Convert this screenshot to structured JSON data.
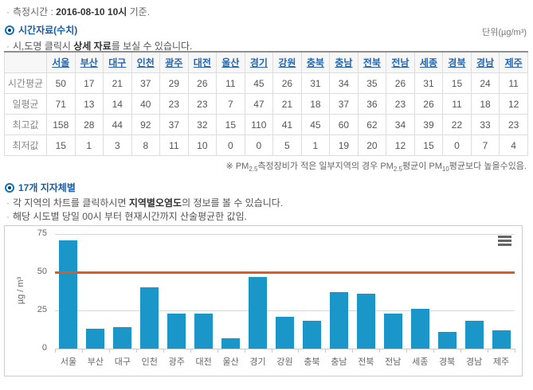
{
  "meta": {
    "bullet": "·",
    "time_prefix": "측정시간 : ",
    "time_value": "2016-08-10 10시",
    "time_suffix": " 기준."
  },
  "section1": {
    "title": "시간자료(수치)",
    "unit": "단위(µg/m³)",
    "hint_pre": "시,도명 클릭시 ",
    "hint_bold": "상세 자료",
    "hint_post": "를 보실 수 있습니다."
  },
  "table": {
    "regions": [
      "서울",
      "부산",
      "대구",
      "인천",
      "광주",
      "대전",
      "울산",
      "경기",
      "강원",
      "충북",
      "충남",
      "전북",
      "전남",
      "세종",
      "경북",
      "경남",
      "제주"
    ],
    "rows": [
      {
        "label": "시간평균",
        "values": [
          50,
          17,
          21,
          37,
          29,
          26,
          11,
          45,
          26,
          31,
          34,
          35,
          26,
          31,
          15,
          24,
          11
        ]
      },
      {
        "label": "일평균",
        "values": [
          71,
          13,
          14,
          40,
          23,
          23,
          7,
          47,
          21,
          18,
          37,
          36,
          23,
          26,
          11,
          18,
          12
        ]
      },
      {
        "label": "최고값",
        "values": [
          158,
          28,
          44,
          92,
          37,
          32,
          15,
          110,
          41,
          45,
          60,
          62,
          34,
          39,
          22,
          33,
          23
        ]
      },
      {
        "label": "최저값",
        "values": [
          15,
          1,
          3,
          8,
          11,
          10,
          0,
          0,
          5,
          1,
          19,
          20,
          12,
          15,
          0,
          7,
          4
        ]
      }
    ]
  },
  "note": {
    "p1": "※ PM",
    "s1": "2.5",
    "p2": "측정장비가 적은 일부지역의 경우 PM",
    "s2": "2.5",
    "p3": "평균이 PM",
    "s3": "10",
    "p4": "평균보다 높을수있음."
  },
  "section2": {
    "title": "17개 지자체별",
    "hint1_pre": "각 지역의 차트를 클릭하시면 ",
    "hint1_bold": "지역별오염도",
    "hint1_post": "의 정보를 볼 수 있습니다.",
    "hint2": "해당 시도별 당일 00시 부터 현재시간까지 산술평균한 값임."
  },
  "chart_data": {
    "type": "bar",
    "categories": [
      "서울",
      "부산",
      "대구",
      "인천",
      "광주",
      "대전",
      "울산",
      "경기",
      "강원",
      "충북",
      "충남",
      "전북",
      "전남",
      "세종",
      "경북",
      "경남",
      "제주"
    ],
    "values": [
      71,
      13,
      14,
      40,
      23,
      23,
      7,
      47,
      21,
      18,
      37,
      36,
      23,
      26,
      11,
      18,
      12
    ],
    "title": "",
    "xlabel": "",
    "ylabel": "µg / m³",
    "ylim": [
      0,
      75
    ],
    "yticks": [
      0,
      25,
      50,
      75
    ],
    "grid": true,
    "legend": "none",
    "threshold_line": 50,
    "bar_color": "#1a96c8",
    "threshold_color": "#d85c25",
    "menu_icon": "hamburger-icon"
  },
  "colors": {
    "section_title": "#1a5da6",
    "link_blue": "#2766ae",
    "bar_blue": "#1a96c8",
    "threshold_orange": "#d85c25"
  }
}
